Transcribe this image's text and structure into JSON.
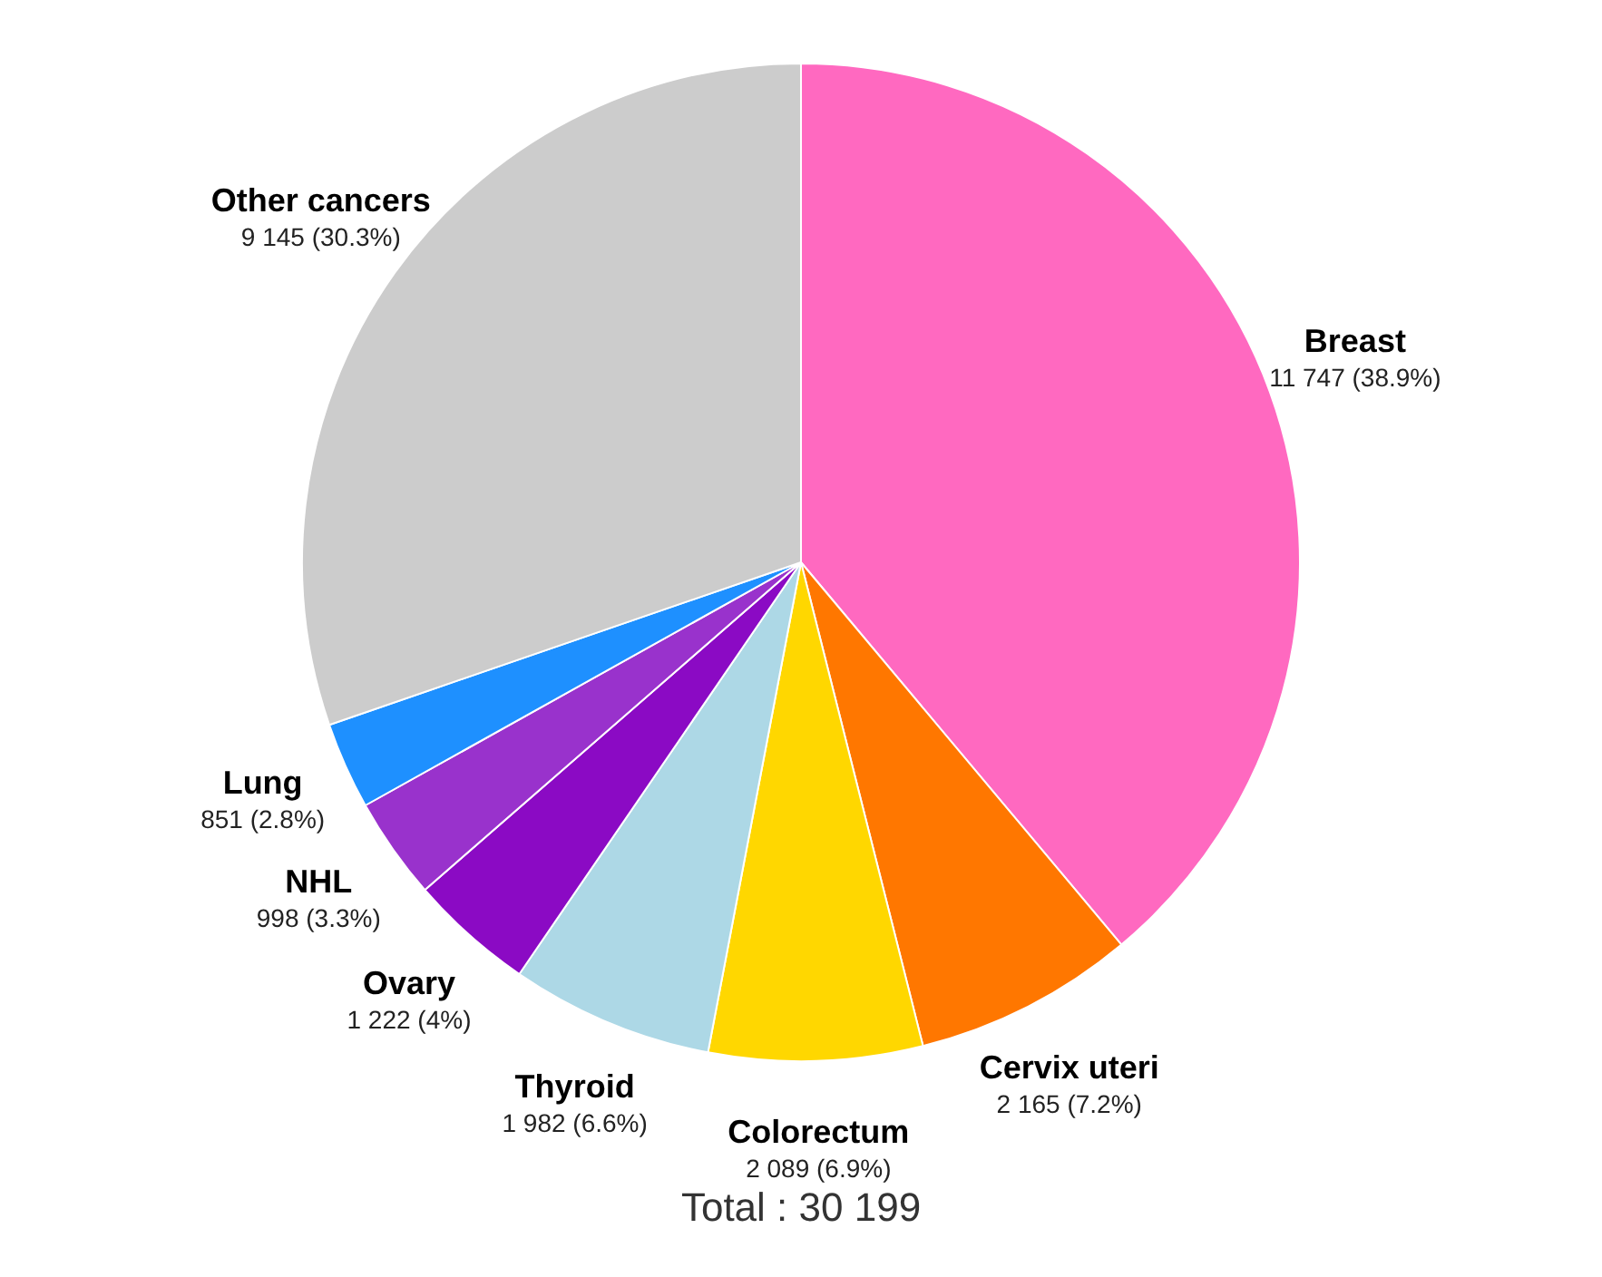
{
  "chart_data": {
    "type": "pie",
    "categories": [
      "Breast",
      "Cervix uteri",
      "Colorectum",
      "Thyroid",
      "Ovary",
      "NHL",
      "Lung",
      "Other cancers"
    ],
    "values": [
      11747,
      2165,
      2089,
      1982,
      1222,
      998,
      851,
      9145
    ],
    "colors": [
      "#ff69c0",
      "#ff7700",
      "#ffd700",
      "#add8e6",
      "#8b0ac4",
      "#9932cc",
      "#1e90ff",
      "#cccccc"
    ],
    "value_labels": [
      "11 747 (38.9%)",
      "2 165 (7.2%)",
      "2 089 (6.9%)",
      "1 982 (6.6%)",
      "1 222 (4%)",
      "998 (3.3%)",
      "851 (2.8%)",
      "9 145 (30.3%)"
    ],
    "annotations": [
      "Total : 30 199"
    ],
    "legend": false
  }
}
